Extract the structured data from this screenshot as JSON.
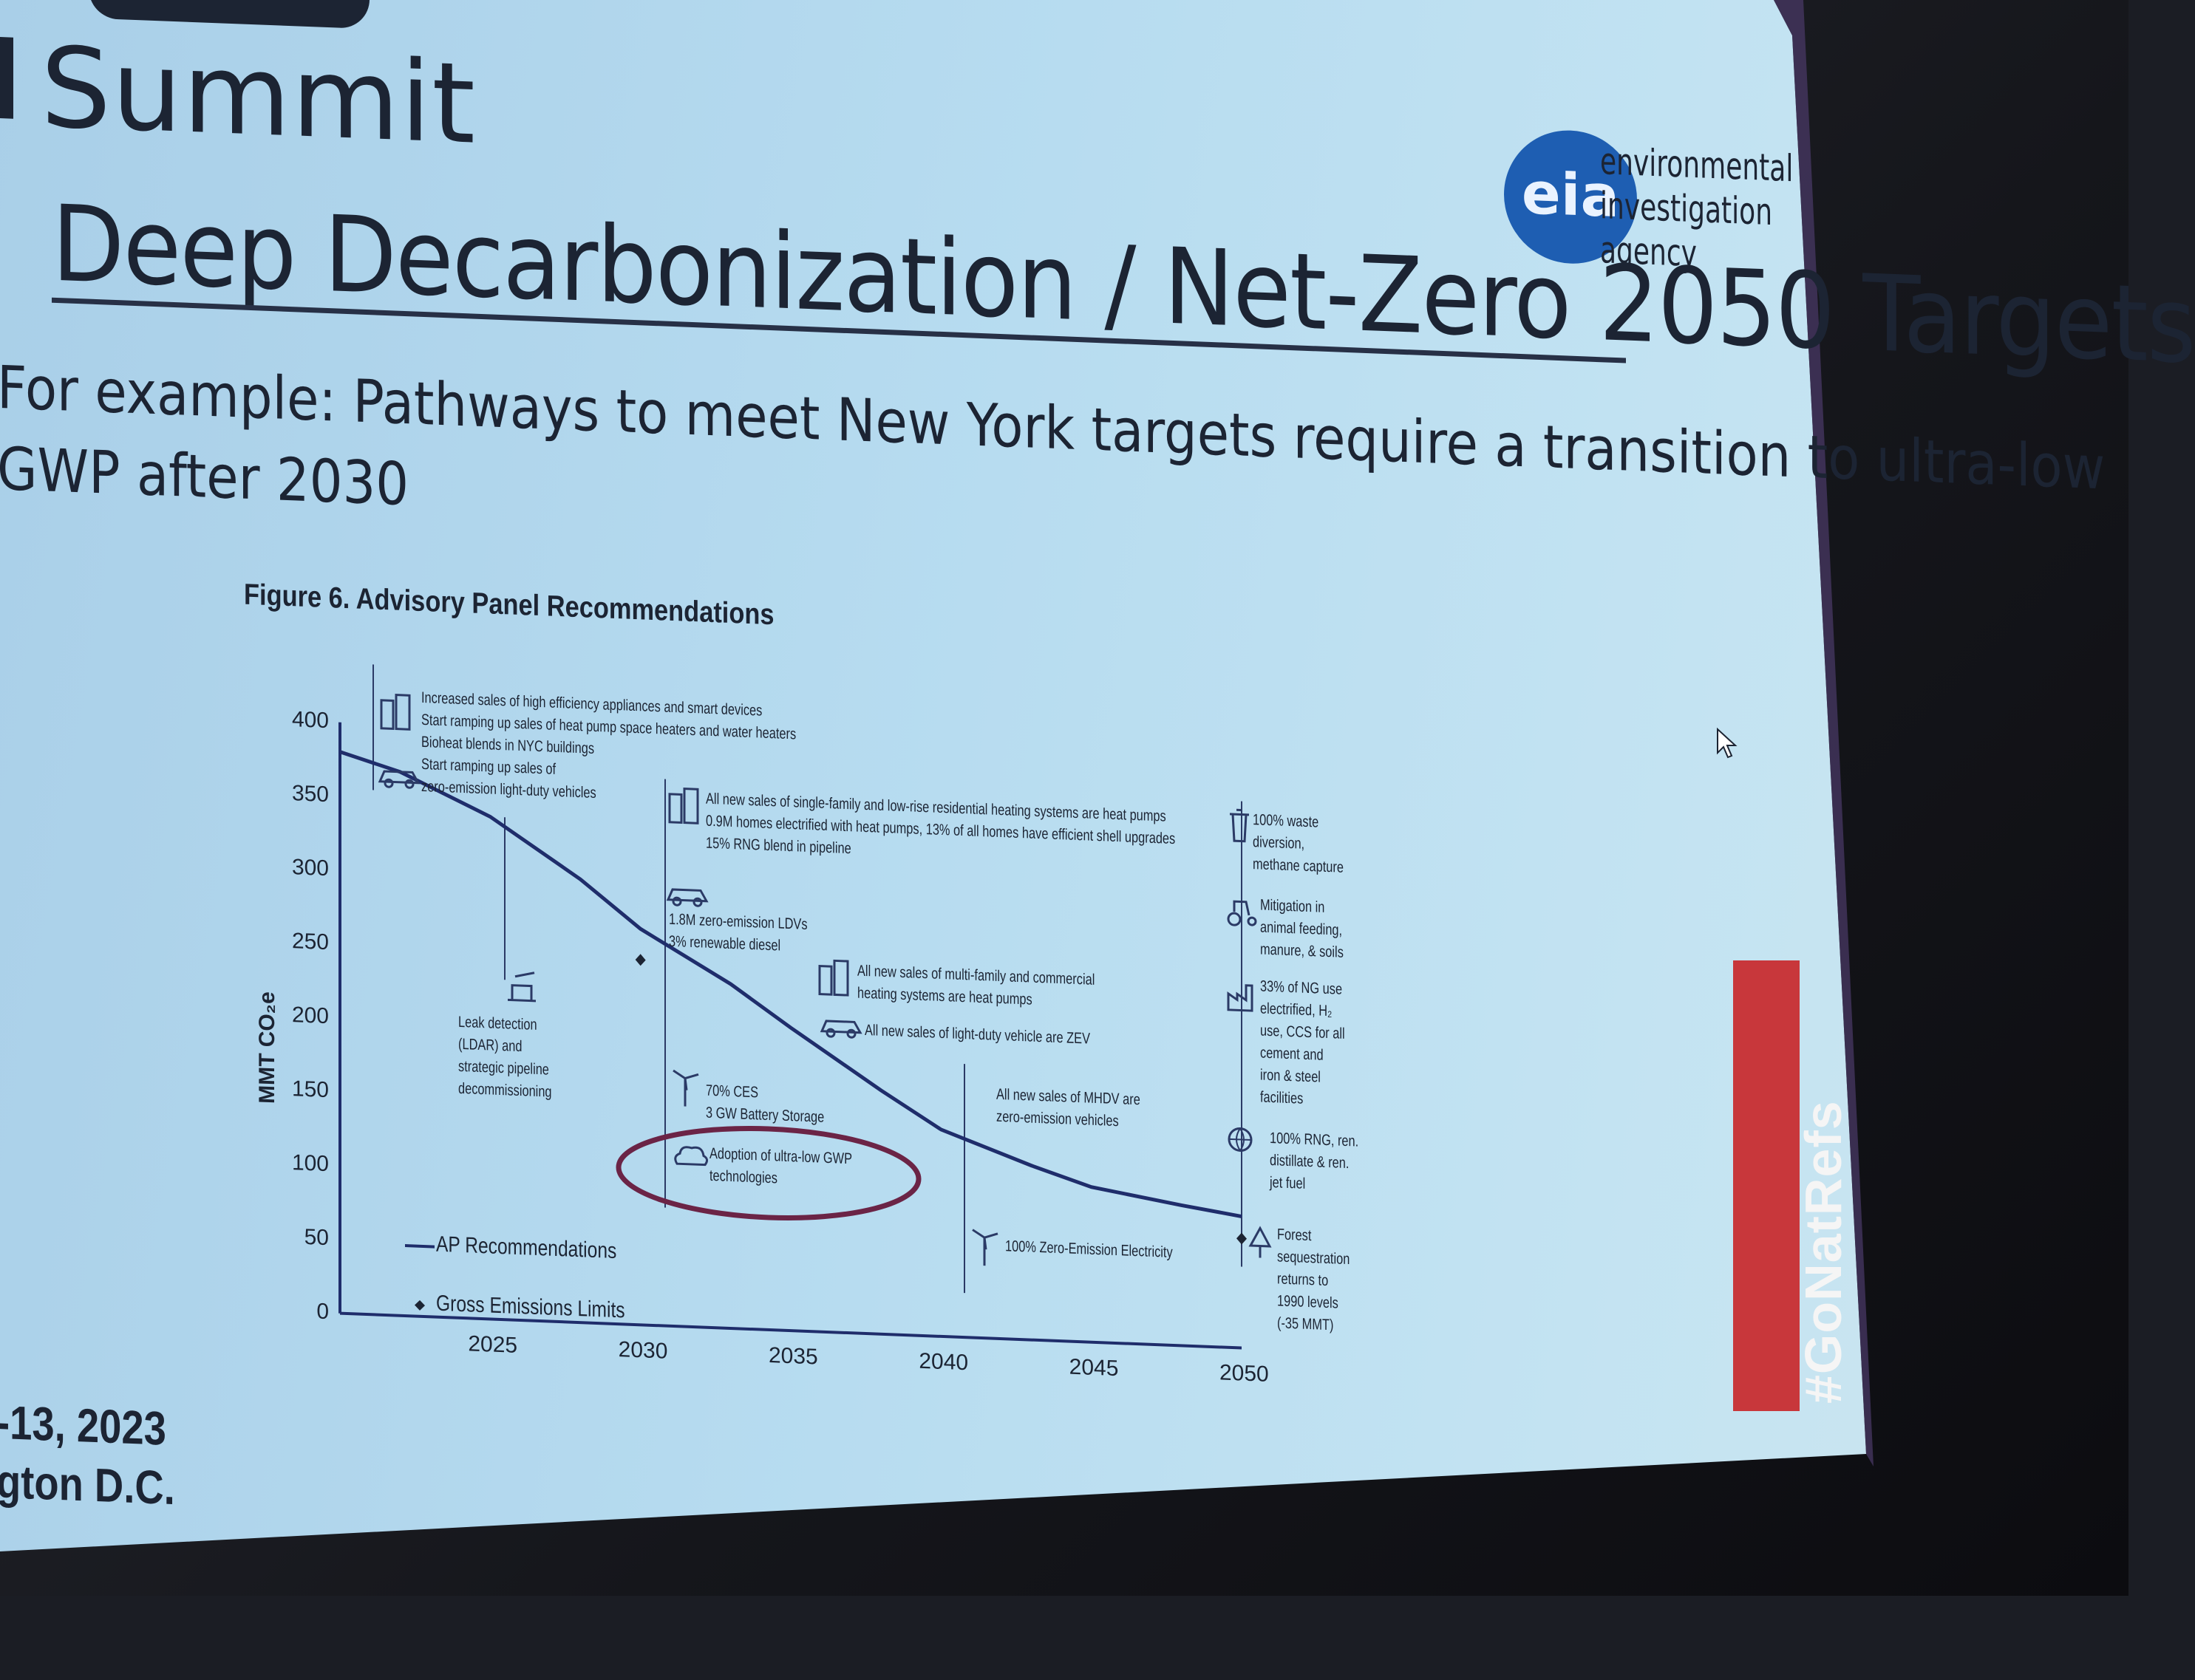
{
  "slide": {
    "summit_text": "Summit",
    "title": "Deep Decarbonization / Net-Zero 2050 Targets",
    "subtitle_line1": "For example: Pathways to meet New York targets require a transition to ultra-low",
    "subtitle_line2": "GWP after 2030",
    "logo_mark": "eia",
    "logo_text": [
      "environmental",
      "investigation",
      "agency"
    ],
    "date_line1": "-13, 2023",
    "date_line2": "gton D.C.",
    "hashtag": "#GoNatRefs",
    "colors": {
      "screen": "#b7dcf0",
      "text": "#1c2433",
      "logo": "#1e5eb2",
      "hashtag_bg": "#c8373b",
      "line": "#1f2d6b",
      "circle": "#6b2446"
    }
  },
  "figure": {
    "title": "Figure 6. Advisory Panel Recommendations",
    "y_label": "MMT CO₂e",
    "legend_line": "AP Recommendations",
    "legend_marker": "Gross Emissions Limits",
    "annotations": {
      "a1": [
        "Increased sales of high efficiency appliances and smart devices",
        "Start ramping up sales of heat pump space heaters and water heaters",
        "Bioheat blends in NYC buildings",
        "Start ramping up sales of",
        "zero-emission light-duty vehicles"
      ],
      "a2": [
        "All new sales of single-family and low-rise  residential heating systems are heat pumps",
        "0.9M homes electrified with heat pumps, 13% of all homes have efficient shell upgrades",
        "15% RNG blend in pipeline"
      ],
      "a3": [
        "1.8M zero-emission LDVs",
        "3% renewable diesel"
      ],
      "a4": [
        "All new sales of multi-family and commercial",
        "heating systems are heat pumps"
      ],
      "a5": [
        "All new sales of light-duty vehicle are ZEV"
      ],
      "a6": [
        "Leak detection",
        "(LDAR) and",
        "strategic pipeline",
        "decommissioning"
      ],
      "a7": [
        "70% CES",
        "3 GW Battery Storage"
      ],
      "a8": [
        "Adoption of ultra-low GWP",
        "technologies"
      ],
      "a9": [
        "All new sales of MHDV are",
        "zero-emission vehicles"
      ],
      "a10": [
        "100% Zero-Emission Electricity"
      ],
      "a11": [
        "100% waste",
        "diversion,",
        "methane capture"
      ],
      "a12": [
        "Mitigation in",
        "animal feeding,",
        "manure, & soils"
      ],
      "a13": [
        "33% of NG use",
        "electrified, H₂",
        "use, CCS for all",
        "cement and",
        "iron & steel",
        "facilities"
      ],
      "a14": [
        "100% RNG,  ren.",
        "distillate & ren.",
        "jet fuel"
      ],
      "a15": [
        "Forest",
        "sequestration",
        "returns to",
        "1990 levels",
        "(-35 MMT)"
      ]
    }
  },
  "chart_data": {
    "type": "line",
    "title": "Figure 6. Advisory Panel Recommendations",
    "ylabel": "MMT CO₂e",
    "xlabel": "",
    "ylim": [
      0,
      400
    ],
    "xlim": [
      2020,
      2050
    ],
    "y_ticks": [
      "0",
      "50",
      "100",
      "150",
      "200",
      "250",
      "300",
      "350",
      "400"
    ],
    "x_ticks": [
      "2025",
      "2030",
      "2035",
      "2040",
      "2045",
      "2050"
    ],
    "series": [
      {
        "name": "AP Recommendations",
        "x": [
          2020,
          2022,
          2025,
          2028,
          2030,
          2033,
          2035,
          2038,
          2040,
          2043,
          2045,
          2048,
          2050
        ],
        "y": [
          380,
          368,
          340,
          300,
          268,
          233,
          205,
          165,
          140,
          118,
          105,
          95,
          89
        ]
      },
      {
        "name": "Gross Emissions Limits",
        "x": [
          2030,
          2050
        ],
        "y": [
          247,
          74
        ]
      }
    ]
  }
}
